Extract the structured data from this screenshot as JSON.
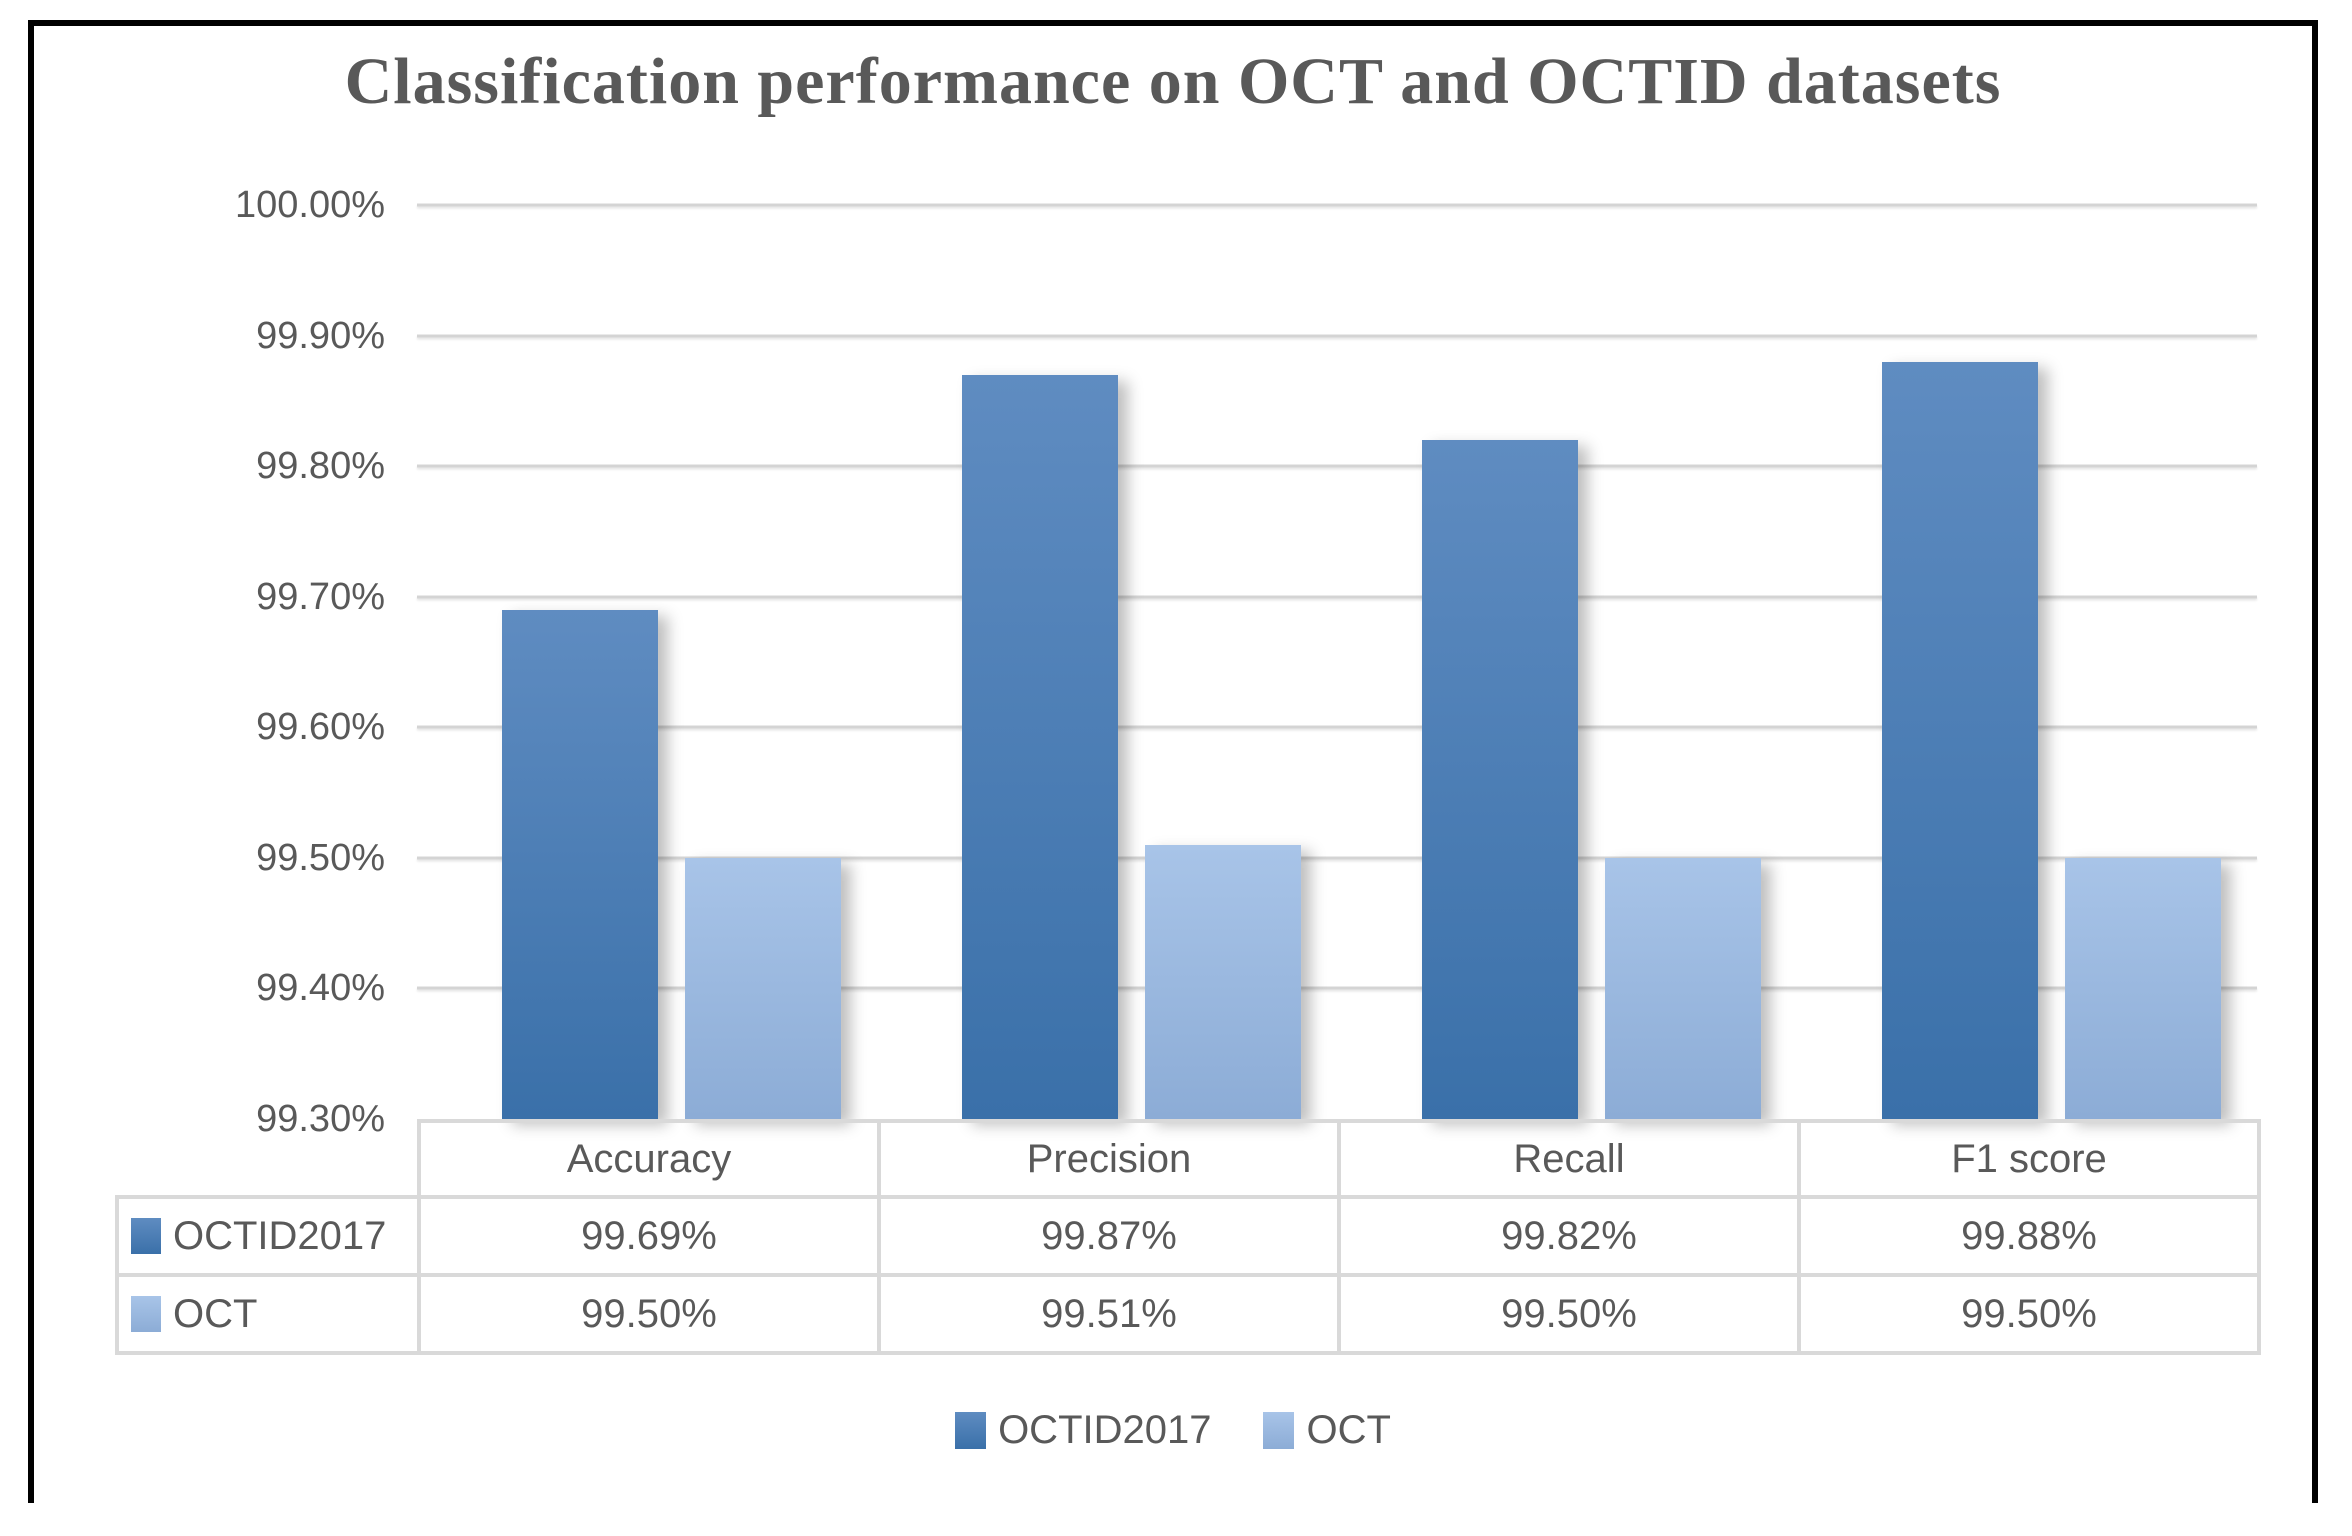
{
  "chart_data": {
    "type": "bar",
    "title": "Classification performance on OCT and OCTID datasets",
    "categories": [
      "Accuracy",
      "Precision",
      "Recall",
      "F1 score"
    ],
    "series": [
      {
        "name": "OCTID2017",
        "values": [
          99.69,
          99.87,
          99.82,
          99.88
        ],
        "display": [
          "99.69%",
          "99.87%",
          "99.82%",
          "99.88%"
        ],
        "color_top": "#5f8cc1",
        "color_bottom": "#3a70a9"
      },
      {
        "name": "OCT",
        "values": [
          99.5,
          99.51,
          99.5,
          99.5
        ],
        "display": [
          "99.50%",
          "99.51%",
          "99.50%",
          "99.50%"
        ],
        "color_top": "#a8c4e8",
        "color_bottom": "#8cacd6"
      }
    ],
    "ylim": [
      99.3,
      100.0
    ],
    "ytick_step": 0.1,
    "yticks": [
      {
        "value": 100.0,
        "label": "100.00%"
      },
      {
        "value": 99.9,
        "label": "99.90%"
      },
      {
        "value": 99.8,
        "label": "99.80%"
      },
      {
        "value": 99.7,
        "label": "99.70%"
      },
      {
        "value": 99.6,
        "label": "99.60%"
      },
      {
        "value": 99.5,
        "label": "99.50%"
      },
      {
        "value": 99.4,
        "label": "99.40%"
      },
      {
        "value": 99.3,
        "label": "99.30%"
      }
    ],
    "grid": true,
    "legend_position": "bottom",
    "legend": [
      "OCTID2017",
      "OCT"
    ]
  },
  "colors": {
    "text": "#595959",
    "gridline": "#d4d4d4",
    "table_border": "#d9d9d9",
    "frame_border": "#000000"
  }
}
